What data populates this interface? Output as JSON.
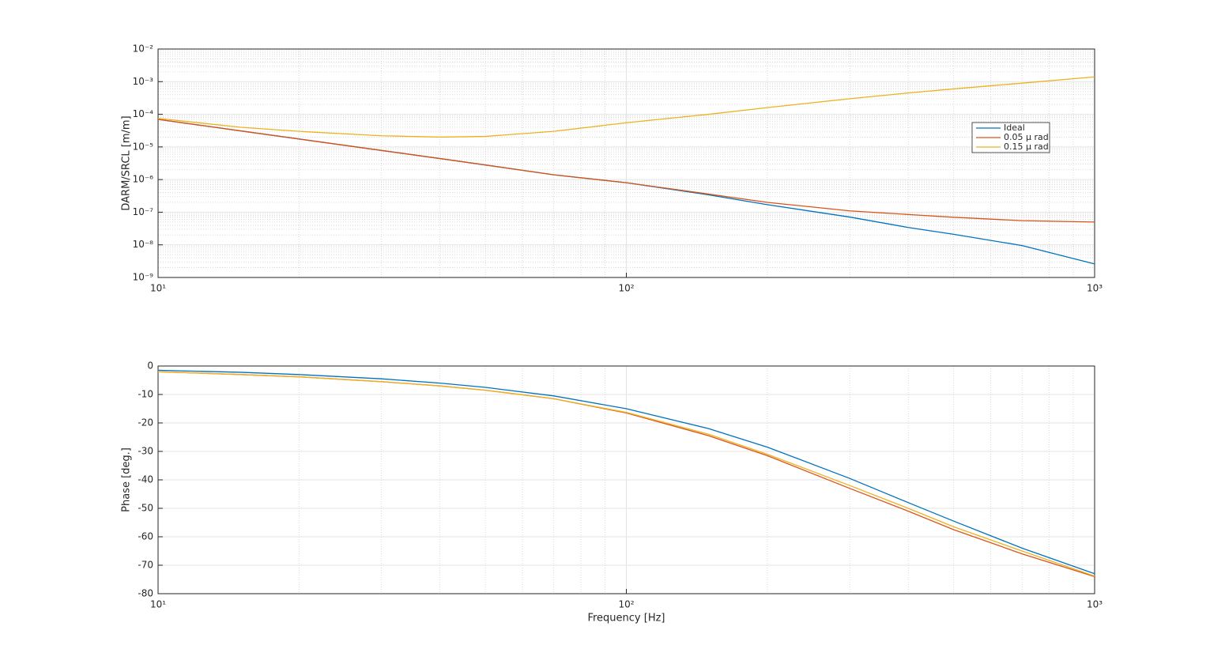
{
  "chart_data": [
    {
      "type": "line",
      "ylabel": "DARM/SRCL [m/m]",
      "xscale": "log",
      "yscale": "log",
      "grid": true,
      "minor_grid": true,
      "legend": "east",
      "xlim": [
        10,
        1000
      ],
      "ylim": [
        1e-09,
        0.01
      ],
      "xticks": [
        {
          "value": 10,
          "label": "10¹"
        },
        {
          "value": 100,
          "label": "10²"
        },
        {
          "value": 1000,
          "label": "10³"
        }
      ],
      "yticks": [
        {
          "value": 1e-09,
          "label": "10⁻⁹"
        },
        {
          "value": 1e-08,
          "label": "10⁻⁸"
        },
        {
          "value": 1e-07,
          "label": "10⁻⁷"
        },
        {
          "value": 1e-06,
          "label": "10⁻⁶"
        },
        {
          "value": 1e-05,
          "label": "10⁻⁵"
        },
        {
          "value": 0.0001,
          "label": "10⁻⁴"
        },
        {
          "value": 0.001,
          "label": "10⁻³"
        },
        {
          "value": 0.01,
          "label": "10⁻²"
        }
      ],
      "x": [
        10,
        15,
        20,
        30,
        40,
        50,
        70,
        100,
        150,
        200,
        300,
        400,
        500,
        700,
        1000
      ],
      "series": [
        {
          "name": "Ideal",
          "color": "#0072bd",
          "values": [
            7e-05,
            3.1e-05,
            1.75e-05,
            7.8e-06,
            4.4e-06,
            2.8e-06,
            1.4e-06,
            8e-07,
            3.4e-07,
            1.7e-07,
            7.1e-08,
            3.4e-08,
            2.1e-08,
            9.5e-09,
            2.6e-09
          ]
        },
        {
          "name": "0.05 μ rad",
          "color": "#d95319",
          "values": [
            7e-05,
            3.1e-05,
            1.75e-05,
            7.8e-06,
            4.4e-06,
            2.8e-06,
            1.4e-06,
            8e-07,
            3.6e-07,
            2e-07,
            1.1e-07,
            8.5e-08,
            7e-08,
            5.5e-08,
            5e-08
          ]
        },
        {
          "name": "0.15 μ rad",
          "color": "#edb120",
          "values": [
            7.5e-05,
            4e-05,
            3e-05,
            2.2e-05,
            2e-05,
            2.1e-05,
            3e-05,
            5.5e-05,
            0.0001,
            0.00016,
            0.0003,
            0.00045,
            0.0006,
            0.0009,
            0.0014
          ]
        }
      ]
    },
    {
      "type": "line",
      "ylabel": "Phase [deg.]",
      "xlabel": "Frequency [Hz]",
      "xscale": "log",
      "yscale": "linear",
      "grid": true,
      "minor_grid": true,
      "xlim": [
        10,
        1000
      ],
      "ylim": [
        -80,
        0
      ],
      "xticks": [
        {
          "value": 10,
          "label": "10¹"
        },
        {
          "value": 100,
          "label": "10²"
        },
        {
          "value": 1000,
          "label": "10³"
        }
      ],
      "yticks": [
        0,
        -10,
        -20,
        -30,
        -40,
        -50,
        -60,
        -70,
        -80
      ],
      "x": [
        10,
        15,
        20,
        30,
        40,
        50,
        70,
        100,
        150,
        200,
        300,
        400,
        500,
        700,
        1000
      ],
      "series": [
        {
          "name": "Ideal",
          "color": "#0072bd",
          "values": [
            -1.5,
            -2.2,
            -3,
            -4.5,
            -6,
            -7.5,
            -10.5,
            -15,
            -22,
            -28.5,
            -39.5,
            -48,
            -54.5,
            -64,
            -73
          ]
        },
        {
          "name": "0.05 μ rad",
          "color": "#d95319",
          "values": [
            -2,
            -3,
            -3.8,
            -5.5,
            -7,
            -8.5,
            -11.5,
            -16.5,
            -24.5,
            -31.5,
            -43,
            -51,
            -57.5,
            -66,
            -74
          ]
        },
        {
          "name": "0.15 μ rad",
          "color": "#edb120",
          "values": [
            -2,
            -3,
            -3.8,
            -5.5,
            -7,
            -8.5,
            -11.5,
            -16.3,
            -24,
            -31,
            -42,
            -50,
            -56.5,
            -65,
            -73.8
          ]
        }
      ]
    }
  ]
}
